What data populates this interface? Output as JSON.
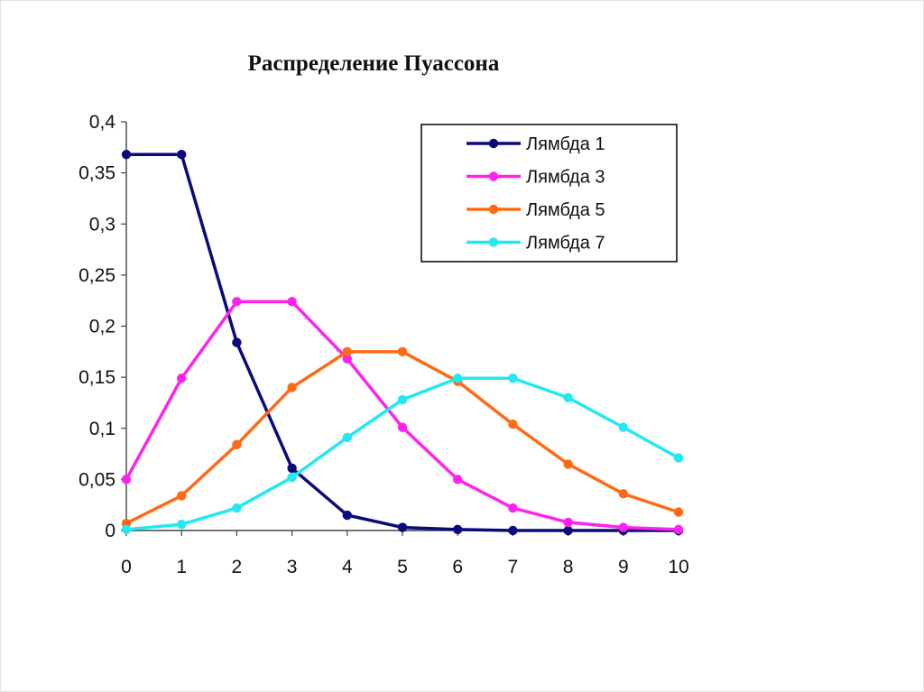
{
  "chart_data": {
    "type": "line",
    "title": "Распределение Пуассона",
    "xlabel": "",
    "ylabel": "",
    "x": [
      0,
      1,
      2,
      3,
      4,
      5,
      6,
      7,
      8,
      9,
      10
    ],
    "xlim": [
      0,
      10
    ],
    "ylim": [
      0,
      0.4
    ],
    "x_ticks": [
      "0",
      "1",
      "2",
      "3",
      "4",
      "5",
      "6",
      "7",
      "8",
      "9",
      "10"
    ],
    "y_ticks": [
      {
        "value": 0,
        "label": "0"
      },
      {
        "value": 0.05,
        "label": "0,05"
      },
      {
        "value": 0.1,
        "label": "0,1"
      },
      {
        "value": 0.15,
        "label": "0,15"
      },
      {
        "value": 0.2,
        "label": "0,2"
      },
      {
        "value": 0.25,
        "label": "0,25"
      },
      {
        "value": 0.3,
        "label": "0,3"
      },
      {
        "value": 0.35,
        "label": "0,35"
      },
      {
        "value": 0.4,
        "label": "0,4"
      }
    ],
    "grid": false,
    "legend_position": "top-right",
    "series": [
      {
        "name": "Лямбда 1",
        "color": "#0a0a7a",
        "values": [
          0.368,
          0.368,
          0.184,
          0.061,
          0.015,
          0.003,
          0.001,
          0,
          0,
          0,
          0
        ]
      },
      {
        "name": "Лямбда 3",
        "color": "#ff22ee",
        "values": [
          0.05,
          0.149,
          0.224,
          0.224,
          0.168,
          0.101,
          0.05,
          0.022,
          0.008,
          0.003,
          0.001
        ]
      },
      {
        "name": "Лямбда 5",
        "color": "#ff6a14",
        "values": [
          0.007,
          0.034,
          0.084,
          0.14,
          0.175,
          0.175,
          0.146,
          0.104,
          0.065,
          0.036,
          0.018
        ]
      },
      {
        "name": "Лямбда 7",
        "color": "#22e8f0",
        "values": [
          0.001,
          0.006,
          0.022,
          0.052,
          0.091,
          0.128,
          0.149,
          0.149,
          0.13,
          0.101,
          0.071
        ]
      }
    ]
  }
}
